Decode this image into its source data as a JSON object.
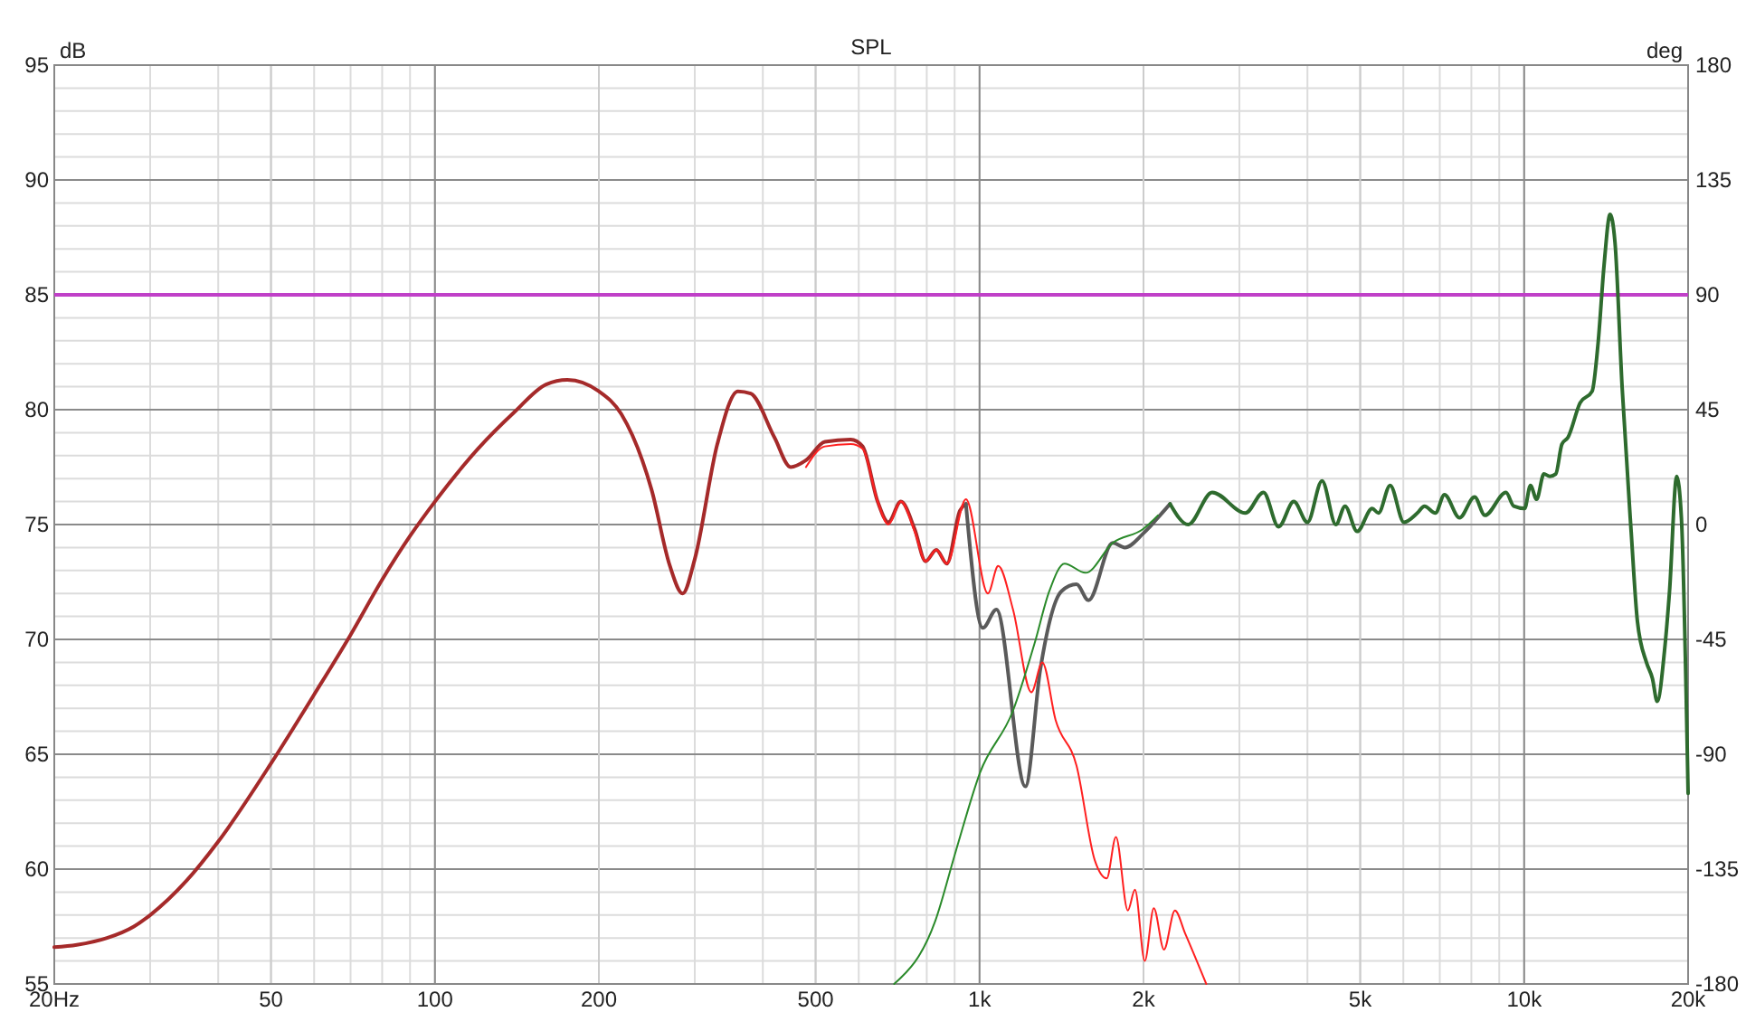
{
  "chart_data": {
    "type": "line",
    "title": "SPL",
    "ylabel": "dB",
    "y2label": "deg",
    "log": "x",
    "grid": true,
    "marker": "none",
    "line_style": "solid",
    "xlim": [
      20,
      20000
    ],
    "xticks": [
      {
        "value": 20,
        "label": "20Hz"
      },
      50,
      100,
      200,
      500,
      {
        "value": 1000,
        "label": "1k"
      },
      {
        "value": 2000,
        "label": "2k"
      },
      {
        "value": 5000,
        "label": "5k"
      },
      {
        "value": 10000,
        "label": "10k"
      },
      {
        "value": 20000,
        "label": "20k"
      }
    ],
    "ylim": [
      55,
      95
    ],
    "yticks": [
      55,
      60,
      65,
      70,
      75,
      80,
      85,
      90,
      95
    ],
    "y2lim": [
      -180,
      180
    ],
    "y2ticks": [
      -180,
      -135,
      -90,
      -45,
      0,
      45,
      90,
      135,
      180
    ],
    "ref_lines": [
      {
        "axis": "y",
        "value": 85,
        "color": "#c040c8"
      }
    ],
    "series": [
      {
        "color": "#a52a2a",
        "x": [
          20,
          22,
          25,
          28,
          30,
          35,
          40,
          50,
          60,
          70,
          80,
          90,
          100,
          120,
          140,
          160,
          175,
          200,
          220,
          250,
          270,
          285,
          300,
          330,
          360,
          380,
          420,
          450,
          480,
          520,
          580,
          610,
          650,
          680,
          717,
          760,
          796,
          833,
          871,
          920,
          944
        ],
        "values": [
          56.6,
          56.7,
          57.0,
          57.5,
          58,
          59.5,
          61.2,
          64.6,
          67.6,
          70.2,
          72.6,
          74.5,
          76,
          78.3,
          79.9,
          81.1,
          81.3,
          80.8,
          79.8,
          76.5,
          73.2,
          72.0,
          73.5,
          78.5,
          80.8,
          80.7,
          78.8,
          77.5,
          77.8,
          78.6,
          78.7,
          78.4,
          76.0,
          75.1,
          76.0,
          74.8,
          73.4,
          73.9,
          73.3,
          75.6,
          75.9
        ]
      },
      {
        "color": "#5a5a5a",
        "x": [
          944,
          1014,
          1074,
          1214,
          1293,
          1414,
          1507,
          1585,
          1756,
          1848,
          1996,
          2126,
          2238
        ],
        "values": [
          75.9,
          70.5,
          71.3,
          63.6,
          68.7,
          72.1,
          72.4,
          71.7,
          74.2,
          74.0,
          74.6,
          75.3,
          75.9
        ]
      },
      {
        "color": "#2e6b2e",
        "x": [
          2238,
          2416,
          2674,
          3077,
          3322,
          3541,
          3776,
          4000,
          4255,
          4511,
          4690,
          4935,
          5260,
          5400,
          5675,
          6015,
          6365,
          6560,
          6870,
          7140,
          7610,
          8110,
          8470,
          9260,
          9570,
          10020,
          10270,
          10540,
          10870,
          11150,
          11430,
          11730,
          12040,
          12670,
          13330,
          13670,
          14020,
          14380,
          14680,
          15130,
          15720,
          16140,
          16770,
          17200,
          17550,
          18100,
          18490,
          19060,
          19440,
          20000
        ],
        "values": [
          75.9,
          75.0,
          76.4,
          75.5,
          76.4,
          74.9,
          76.0,
          75.1,
          76.9,
          75.0,
          75.8,
          74.7,
          75.7,
          75.5,
          76.7,
          75.1,
          75.5,
          75.8,
          75.5,
          76.3,
          75.3,
          76.2,
          75.4,
          76.4,
          75.8,
          75.7,
          76.7,
          76.1,
          77.2,
          77.1,
          77.2,
          78.5,
          78.8,
          80.3,
          80.8,
          82.9,
          86.3,
          88.5,
          87.3,
          81.0,
          74.7,
          70.8,
          69.0,
          68.3,
          67.3,
          69.5,
          72.1,
          77.1,
          75.3,
          63.3
        ]
      },
      {
        "color": "#ff2020",
        "x": [
          480,
          520,
          580,
          610,
          650,
          680,
          717,
          760,
          796,
          833,
          871,
          944,
          1036,
          1082,
          1152,
          1245,
          1304,
          1379,
          1507,
          1627,
          1712,
          1780,
          1872,
          1929,
          2011,
          2089,
          2181,
          2284,
          2385,
          2608
        ],
        "values": [
          77.5,
          78.4,
          78.5,
          78.3,
          76.0,
          75.0,
          76.0,
          74.7,
          73.4,
          73.9,
          73.3,
          76.1,
          72.0,
          73.2,
          71.3,
          67.7,
          69.0,
          66.5,
          64.5,
          60.4,
          59.6,
          61.4,
          58.2,
          59.1,
          56.0,
          58.3,
          56.5,
          58.2,
          57.2,
          55
        ]
      },
      {
        "color": "#2a8a2a",
        "x": [
          697,
          828,
          905,
          1002,
          1152,
          1261,
          1343,
          1432,
          1565,
          1756,
          1996,
          2126
        ],
        "values": [
          55,
          57.7,
          60.8,
          64.2,
          66.9,
          69.8,
          72.1,
          73.3,
          72.9,
          74.2,
          74.8,
          75.4
        ]
      }
    ]
  }
}
